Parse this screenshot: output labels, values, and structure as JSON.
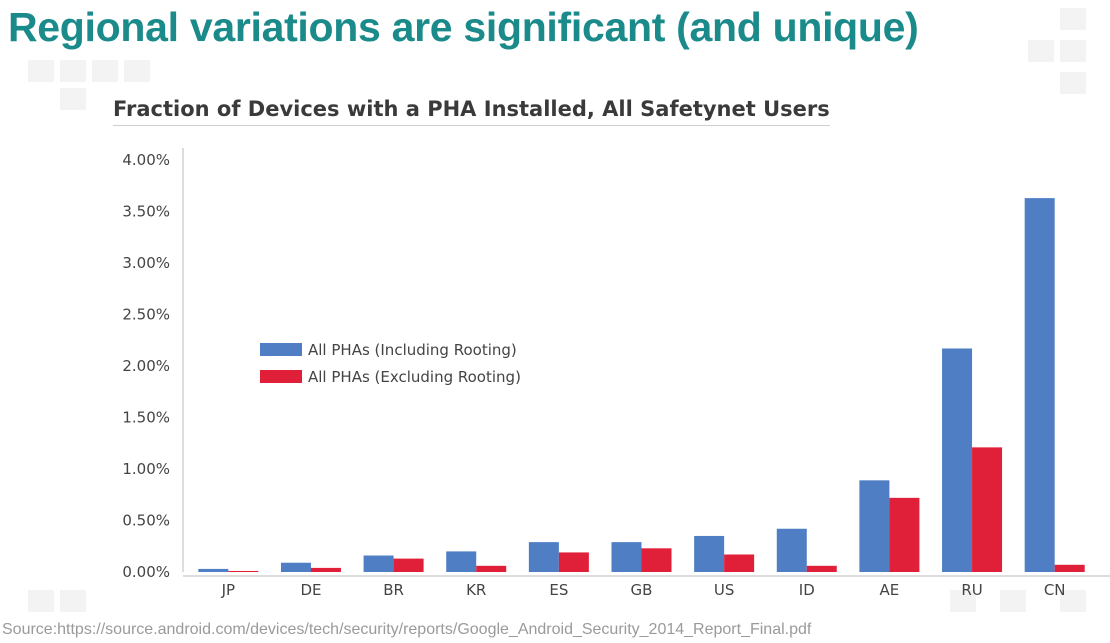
{
  "slide": {
    "title": "Regional variations are significant (and unique)",
    "source": "Source:https://source.android.com/devices/tech/security/reports/Google_Android_Security_2014_Report_Final.pdf"
  },
  "colors": {
    "title": "#1a8a8a",
    "series_including": "#4f7ec5",
    "series_excluding": "#e01f38",
    "axis": "#bbbbbb"
  },
  "chart_data": {
    "type": "bar",
    "title": "Fraction of Devices with a PHA Installed, All Safetynet Users",
    "xlabel": "",
    "ylabel": "",
    "ylim": [
      0,
      4.0
    ],
    "yticks": [
      "0.00%",
      "0.50%",
      "1.00%",
      "1.50%",
      "2.00%",
      "2.50%",
      "3.00%",
      "3.50%",
      "4.00%"
    ],
    "categories": [
      "JP",
      "DE",
      "BR",
      "KR",
      "ES",
      "GB",
      "US",
      "ID",
      "AE",
      "RU",
      "CN"
    ],
    "series": [
      {
        "name": "All PHAs (Including Rooting)",
        "values": [
          0.03,
          0.09,
          0.16,
          0.2,
          0.29,
          0.29,
          0.35,
          0.42,
          0.89,
          2.17,
          3.63
        ]
      },
      {
        "name": "All PHAs (Excluding Rooting)",
        "values": [
          0.01,
          0.04,
          0.13,
          0.06,
          0.19,
          0.23,
          0.17,
          0.06,
          0.72,
          1.21,
          0.07
        ]
      }
    ],
    "legend_position": "center-left",
    "grid": false
  }
}
